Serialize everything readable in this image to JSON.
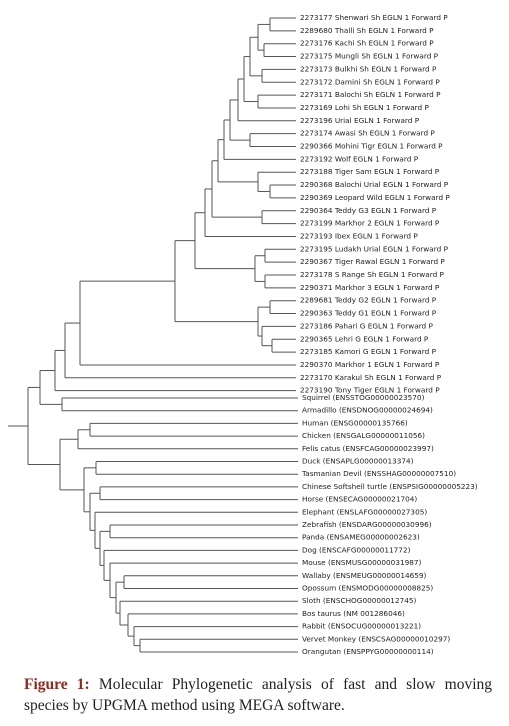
{
  "tree": {
    "leaves": [
      "2273177 Shenwari Sh EGLN 1 Forward P",
      "2289680 Thalli Sh EGLN 1 Forward P",
      "2273176 Kachi Sh EGLN 1 Forward P",
      "2273175 Mungli Sh EGLN 1 Forward P",
      "2273173 Bulkhi Sh EGLN 1 Forward P",
      "2273172 Damini Sh EGLN 1 Forward P",
      "2273171 Balochi Sh EGLN 1 Forward P",
      "2273169 Lohi Sh EGLN 1 Forward P",
      "2273196 Urial EGLN 1 Forward P",
      "2273174 Awasi Sh EGLN 1 Forward P",
      "2290366 Mohini Tigr EGLN 1 Forward P",
      "2273192 Wolf EGLN 1 Forward P",
      "2273188 Tiger Sam EGLN 1 Forward P",
      "2290368 Balochi Urial EGLN 1 Forward P",
      "2290369 Leopard Wild EGLN 1 Forward P",
      "2290364 Teddy G3 EGLN 1 Forward P",
      "2273199 Markhor 2 EGLN 1 Forward P",
      "2273193 Ibex EGLN 1 Forward P",
      "2273195 Ludakh Urial EGLN 1 Forward P",
      "2290367 Tiger Rawal EGLN 1 Forward P",
      "2273178 S Range Sh EGLN 1 Forward P",
      "2290371 Markhor 3 EGLN 1 Forward P",
      "2289681 Teddy G2 EGLN 1 Forward P",
      "2290363 Teddy G1 EGLN 1 Forward P",
      "2273186 Pahari G EGLN 1 Forward P",
      "2290365 Lehri G EGLN 1 Forward P",
      "2273185 Kamori G EGLN 1 Forward P",
      "2290370 Markhor 1 EGLN 1 Forward P",
      "2273170 Karakul Sh EGLN 1 Forward P",
      "2273190 Tony Tiger EGLN 1 Forward P",
      "Squirrel (ENSSTOG00000023570)",
      "Armadillo (ENSDNOG00000024694)",
      "Human (ENSG00000135766)",
      "Chicken (ENSGALG00000011056)",
      "Felis catus (ENSFCAG00000023997)",
      "Duck (ENSAPLG00000013374)",
      "Tasmanian Devil (ENSSHAG00000007510)",
      "Chinese Softshell turtle (ENSPSIG00000005223)",
      "Horse (ENSECAG00000021704)",
      "Elephant (ENSLAFG00000027305)",
      "Zebrafish (ENSDARG00000030996)",
      "Panda (ENSAMEG00000002623)",
      "Dog (ENSCAFG00000011772)",
      "Mouse (ENSMUSG00000031987)",
      "Wallaby (ENSMEUG00000014659)",
      "Opossum (ENSMODG00000008825)",
      "Sloth (ENSCHOG00000012745)",
      "Bos taurus (NM 001286046)",
      "Rabbit (ENSOCUG00000013221)",
      "Vervet Monkey (ENSCSAG00000010297)",
      "Orangutan (ENSPPYG00000000114)"
    ]
  },
  "caption": {
    "label": "Figure 1:",
    "text": "Molecular Phylogenetic analysis of fast and slow moving species by UPGMA method using MEGA software."
  }
}
